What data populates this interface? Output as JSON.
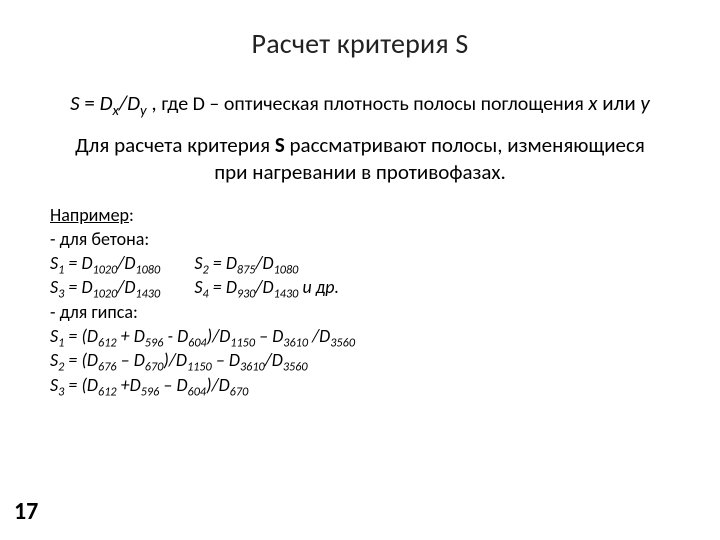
{
  "title": "Расчет критерия S",
  "formula": {
    "lhs": "S",
    "eq": " = ",
    "num_var": "D",
    "num_sub": "x",
    "slash": "/",
    "den_var": "D",
    "den_sub": "y",
    "comma": " , ",
    "where": "где D – оптическая плотность полосы поглощения ",
    "x": "x",
    "or": " или ",
    "y": "y"
  },
  "desc": {
    "pre": "Для расчета критерия ",
    "s": "S",
    "post1": "  рассматривают полосы, изменяющиеся при нагревании в противофазах."
  },
  "example": {
    "label": "Например",
    "colon": ":",
    "concrete_label": "- для бетона:",
    "s1l": "S",
    "s1s": "1",
    "eq": " = ",
    "D": "D",
    "c_s1_a": "1020",
    "c_s1_b": "1080",
    "c_s2_a": "875",
    "c_s2_b": "1080",
    "c_s3_a": "1020",
    "c_s3_b": "1430",
    "c_s4_a": "930",
    "c_s4_b": "1430",
    "s2s": "2",
    "s3s": "3",
    "s4s": "4",
    "etc": " и др.",
    "gypsum_label": "- для гипса:",
    "g1": {
      "a": "612",
      "b": "596",
      "c": "604",
      "d": "1150",
      "e": "3610",
      "f": "3560"
    },
    "g2": {
      "a": "676",
      "b": "670",
      "d": "1150",
      "e": "3610",
      "f": "3560"
    },
    "g3": {
      "a": "612",
      "b": "596",
      "c": "604",
      "d": "670"
    },
    "plus": " + ",
    "plus2": " +",
    "minus": " – ",
    "minus_ascii": " - ",
    "open": "(",
    "close": ")",
    "slash": "/",
    "space_slash": " /"
  },
  "page": "17",
  "style": {
    "bg": "#ffffff",
    "text": "#000000",
    "title_fontsize": 28,
    "body_fontsize": 21,
    "example_fontsize": 18,
    "pagenum_fontsize": 24
  }
}
